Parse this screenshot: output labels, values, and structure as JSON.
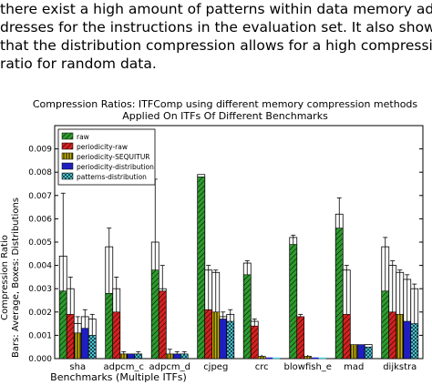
{
  "paragraph": {
    "lines": [
      "there exist a high amount of patterns within data memory ad-",
      "dresses for the instructions in the evaluation set. It also shows",
      "that the distribution compression allows for a high compression",
      "ratio for random data."
    ]
  },
  "chart_data": {
    "type": "bar",
    "title": "Compression Ratios: ITFComp using different memory compression methods",
    "subtitle": "Applied On ITFs Of Different Benchmarks",
    "xlabel": "Benchmarks (Multiple ITFs)",
    "ylabel": "Compression Ratio",
    "ylabel2": "Bars: Average, Boxes: Distributions",
    "ylim": [
      0,
      0.01
    ],
    "yticks": [
      "0.000",
      "0.001",
      "0.002",
      "0.003",
      "0.004",
      "0.005",
      "0.006",
      "0.007",
      "0.008",
      "0.009"
    ],
    "grid": false,
    "legend_position": "top-left",
    "categories": [
      "sha",
      "adpcm_c",
      "adpcm_d",
      "cjpeg",
      "crc",
      "blowfish_e",
      "mad",
      "dijkstra"
    ],
    "series": [
      {
        "name": "raw",
        "color": "#2e9a2e",
        "pattern": "diag",
        "values": [
          0.0029,
          0.0028,
          0.0038,
          0.0078,
          0.0036,
          0.0049,
          0.0056,
          0.0029
        ],
        "box_top": [
          0.0044,
          0.0048,
          0.005,
          0.0079,
          0.0041,
          0.0052,
          0.0062,
          0.0048
        ],
        "err_top": [
          0.0071,
          0.0056,
          0.0077,
          0.0079,
          0.0042,
          0.0053,
          0.0069,
          0.0052
        ]
      },
      {
        "name": "periodicity-raw",
        "color": "#d42121",
        "pattern": "diag",
        "values": [
          0.0019,
          0.002,
          0.0029,
          0.0021,
          0.0014,
          0.0018,
          0.0019,
          0.002
        ],
        "box_top": [
          0.003,
          0.003,
          0.003,
          0.0038,
          0.0016,
          0.0018,
          0.0038,
          0.004
        ],
        "err_top": [
          0.0035,
          0.0035,
          0.004,
          0.004,
          0.0017,
          0.0019,
          0.004,
          0.0042
        ]
      },
      {
        "name": "periodicity-SEQUITUR",
        "color": "#c8b400",
        "pattern": "vert",
        "values": [
          0.0011,
          0.0002,
          0.0002,
          0.002,
          0.0001,
          0.0001,
          0.0006,
          0.0019
        ],
        "box_top": [
          0.0015,
          0.0002,
          0.0002,
          0.0037,
          0.0001,
          0.0001,
          0.0006,
          0.0037
        ],
        "err_top": [
          0.0018,
          0.0003,
          0.0004,
          0.0038,
          0.0001,
          0.0001,
          0.0006,
          0.0038
        ]
      },
      {
        "name": "periodicity-distribution",
        "color": "#1f1fbf",
        "pattern": "none",
        "values": [
          0.0013,
          0.0002,
          0.0002,
          0.0017,
          0.0,
          0.0,
          0.0006,
          0.0016
        ],
        "box_top": [
          0.0018,
          0.0002,
          0.0002,
          0.0018,
          0.0,
          0.0,
          0.0006,
          0.0034
        ],
        "err_top": [
          0.0021,
          0.0002,
          0.0003,
          0.002,
          0.0,
          0.0,
          0.0006,
          0.0036
        ]
      },
      {
        "name": "patterns-distribution",
        "color": "#4fd0e0",
        "pattern": "cross",
        "values": [
          0.001,
          0.0002,
          0.0002,
          0.0016,
          0.0,
          0.0,
          0.0005,
          0.0015
        ],
        "box_top": [
          0.0017,
          0.0002,
          0.0002,
          0.0019,
          0.0,
          0.0,
          0.0006,
          0.003
        ],
        "err_top": [
          0.0019,
          0.0003,
          0.0003,
          0.0021,
          0.0,
          0.0,
          0.0006,
          0.0032
        ]
      }
    ]
  }
}
